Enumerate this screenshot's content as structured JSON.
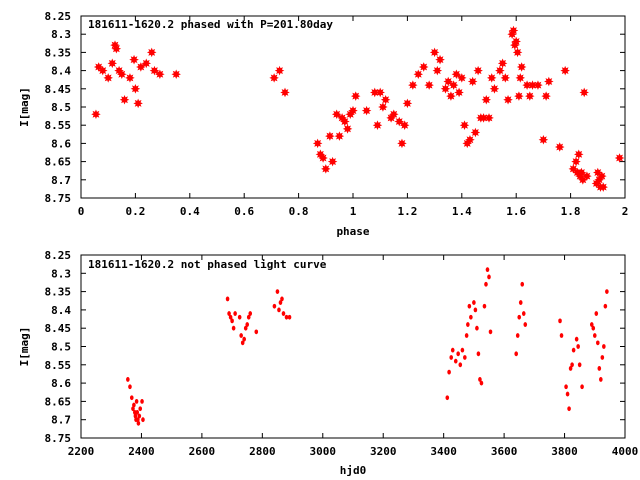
{
  "chart_data": [
    {
      "type": "scatter",
      "title": "181611-1620.2 phased with P=201.80day",
      "xlabel": "phase",
      "ylabel": "I[mag]",
      "xlim": [
        0,
        2
      ],
      "ylim": [
        8.75,
        8.25
      ],
      "y_inverted": true,
      "grid": false,
      "color": "#ff0000",
      "marker": "star",
      "x_ticks": [
        "0",
        "0.2",
        "0.4",
        "0.6",
        "0.8",
        "1",
        "1.2",
        "1.4",
        "1.6",
        "1.8",
        "2"
      ],
      "y_ticks": [
        "8.25",
        "8.3",
        "8.35",
        "8.4",
        "8.45",
        "8.5",
        "8.55",
        "8.6",
        "8.65",
        "8.7",
        "8.75"
      ],
      "x": [
        0.055,
        0.065,
        0.08,
        0.1,
        0.115,
        0.125,
        0.13,
        0.14,
        0.15,
        0.16,
        0.18,
        0.195,
        0.2,
        0.21,
        0.22,
        0.24,
        0.26,
        0.27,
        0.29,
        0.35,
        0.71,
        0.73,
        0.75,
        0.87,
        0.88,
        0.89,
        0.9,
        0.915,
        0.925,
        0.94,
        0.95,
        0.96,
        0.97,
        0.98,
        0.99,
        1.0,
        1.01,
        1.05,
        1.08,
        1.09,
        1.1,
        1.11,
        1.12,
        1.14,
        1.15,
        1.17,
        1.18,
        1.19,
        1.2,
        1.22,
        1.24,
        1.26,
        1.28,
        1.3,
        1.31,
        1.32,
        1.34,
        1.35,
        1.36,
        1.37,
        1.38,
        1.39,
        1.4,
        1.41,
        1.42,
        1.43,
        1.44,
        1.45,
        1.46,
        1.47,
        1.48,
        1.49,
        1.5,
        1.51,
        1.52,
        1.54,
        1.55,
        1.56,
        1.57,
        1.585,
        1.59,
        1.595,
        1.6,
        1.605,
        1.61,
        1.615,
        1.62,
        1.64,
        1.65,
        1.66,
        1.68,
        1.7,
        1.71,
        1.72,
        1.76,
        1.78,
        1.81,
        1.82,
        1.825,
        1.83,
        1.835,
        1.84,
        1.845,
        1.85,
        1.86,
        1.895,
        1.9,
        1.905,
        1.91,
        1.915,
        1.92,
        1.98
      ],
      "y": [
        8.52,
        8.39,
        8.4,
        8.42,
        8.38,
        8.33,
        8.34,
        8.4,
        8.41,
        8.48,
        8.42,
        8.37,
        8.45,
        8.49,
        8.39,
        8.38,
        8.35,
        8.4,
        8.41,
        8.41,
        8.42,
        8.4,
        8.46,
        8.6,
        8.63,
        8.64,
        8.67,
        8.58,
        8.65,
        8.52,
        8.58,
        8.53,
        8.54,
        8.56,
        8.52,
        8.51,
        8.47,
        8.51,
        8.46,
        8.55,
        8.46,
        8.5,
        8.48,
        8.53,
        8.52,
        8.54,
        8.6,
        8.55,
        8.49,
        8.44,
        8.41,
        8.39,
        8.44,
        8.35,
        8.4,
        8.37,
        8.45,
        8.43,
        8.47,
        8.44,
        8.41,
        8.46,
        8.42,
        8.55,
        8.6,
        8.59,
        8.43,
        8.57,
        8.4,
        8.53,
        8.53,
        8.48,
        8.53,
        8.42,
        8.45,
        8.4,
        8.38,
        8.42,
        8.48,
        8.3,
        8.29,
        8.33,
        8.32,
        8.35,
        8.47,
        8.42,
        8.39,
        8.44,
        8.47,
        8.44,
        8.44,
        8.59,
        8.47,
        8.43,
        8.61,
        8.4,
        8.67,
        8.65,
        8.68,
        8.63,
        8.69,
        8.68,
        8.7,
        8.46,
        8.69,
        8.71,
        8.68,
        8.7,
        8.72,
        8.69,
        8.72,
        8.64
      ]
    },
    {
      "type": "scatter",
      "title": "181611-1620.2 not phased light curve",
      "xlabel": "hjd0",
      "ylabel": "I[mag]",
      "xlim": [
        2200,
        4000
      ],
      "ylim": [
        8.75,
        8.25
      ],
      "y_inverted": true,
      "grid": false,
      "color": "#ff0000",
      "marker": "dot",
      "x_ticks": [
        "2200",
        "2400",
        "2600",
        "2800",
        "3000",
        "3200",
        "3400",
        "3600",
        "3800",
        "4000"
      ],
      "y_ticks": [
        "8.25",
        "8.3",
        "8.35",
        "8.4",
        "8.45",
        "8.5",
        "8.55",
        "8.6",
        "8.65",
        "8.7",
        "8.75"
      ],
      "x": [
        2355,
        2362,
        2368,
        2372,
        2375,
        2378,
        2380,
        2382,
        2384,
        2386,
        2388,
        2390,
        2393,
        2396,
        2402,
        2405,
        2685,
        2690,
        2695,
        2700,
        2705,
        2710,
        2725,
        2730,
        2735,
        2740,
        2745,
        2750,
        2755,
        2760,
        2780,
        2840,
        2850,
        2855,
        2860,
        2865,
        2870,
        2880,
        2890,
        3412,
        3418,
        3425,
        3430,
        3440,
        3448,
        3455,
        3462,
        3470,
        3476,
        3480,
        3485,
        3490,
        3500,
        3505,
        3510,
        3515,
        3520,
        3525,
        3535,
        3540,
        3545,
        3550,
        3555,
        3640,
        3645,
        3650,
        3655,
        3660,
        3665,
        3670,
        3785,
        3790,
        3805,
        3810,
        3815,
        3820,
        3825,
        3830,
        3840,
        3845,
        3850,
        3858,
        3890,
        3895,
        3900,
        3905,
        3910,
        3915,
        3920,
        3925,
        3930,
        3935,
        3940
      ],
      "y": [
        8.59,
        8.61,
        8.64,
        8.67,
        8.66,
        8.68,
        8.69,
        8.7,
        8.65,
        8.68,
        8.7,
        8.71,
        8.69,
        8.67,
        8.65,
        8.7,
        8.37,
        8.41,
        8.42,
        8.43,
        8.45,
        8.41,
        8.42,
        8.47,
        8.49,
        8.48,
        8.45,
        8.44,
        8.42,
        8.41,
        8.46,
        8.39,
        8.35,
        8.4,
        8.38,
        8.37,
        8.41,
        8.42,
        8.42,
        8.64,
        8.57,
        8.53,
        8.51,
        8.54,
        8.52,
        8.55,
        8.51,
        8.53,
        8.47,
        8.44,
        8.39,
        8.42,
        8.38,
        8.4,
        8.45,
        8.52,
        8.59,
        8.6,
        8.39,
        8.33,
        8.29,
        8.31,
        8.46,
        8.52,
        8.47,
        8.42,
        8.38,
        8.33,
        8.41,
        8.44,
        8.43,
        8.47,
        8.61,
        8.63,
        8.67,
        8.56,
        8.55,
        8.51,
        8.48,
        8.5,
        8.55,
        8.61,
        8.44,
        8.45,
        8.47,
        8.41,
        8.49,
        8.56,
        8.59,
        8.53,
        8.5,
        8.39,
        8.35
      ]
    }
  ]
}
